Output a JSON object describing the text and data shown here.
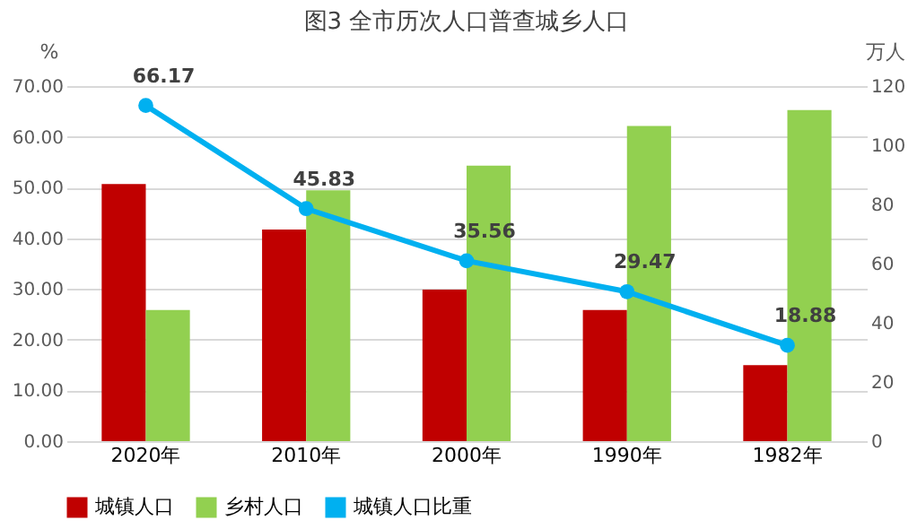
{
  "chart_data": {
    "type": "bar",
    "title": "图3 全市历次人口普查城乡人口",
    "categories": [
      "2020年",
      "2010年",
      "2000年",
      "1990年",
      "1982年"
    ],
    "series": [
      {
        "name": "城镇人口",
        "color": "#c00000",
        "axis": "y2",
        "values": [
          86.9,
          71.5,
          51.2,
          44.3,
          25.7
        ]
      },
      {
        "name": "乡村人口",
        "color": "#92d050",
        "axis": "y2",
        "values": [
          44.3,
          84.8,
          93.1,
          106.5,
          111.9
        ]
      },
      {
        "name": "城镇人口比重",
        "type": "line",
        "color": "#00b0f0",
        "marker": "circle",
        "data_labels": true,
        "values": [
          66.17,
          45.83,
          35.56,
          29.47,
          18.88
        ]
      }
    ],
    "ylabel": "%",
    "y2label": "万人",
    "ylim": [
      0,
      70
    ],
    "yticks": [
      {
        "value": 0,
        "label": "0.00"
      },
      {
        "value": 10,
        "label": "10.00"
      },
      {
        "value": 20,
        "label": "20.00"
      },
      {
        "value": 30,
        "label": "30.00"
      },
      {
        "value": 40,
        "label": "40.00"
      },
      {
        "value": 50,
        "label": "50.00"
      },
      {
        "value": 60,
        "label": "60.00"
      },
      {
        "value": 70,
        "label": "70.00"
      }
    ],
    "y2lim": [
      0,
      120
    ],
    "y2ticks": [
      0,
      20,
      40,
      60,
      80,
      100,
      120
    ],
    "grid": "y",
    "legend": "bottom"
  }
}
